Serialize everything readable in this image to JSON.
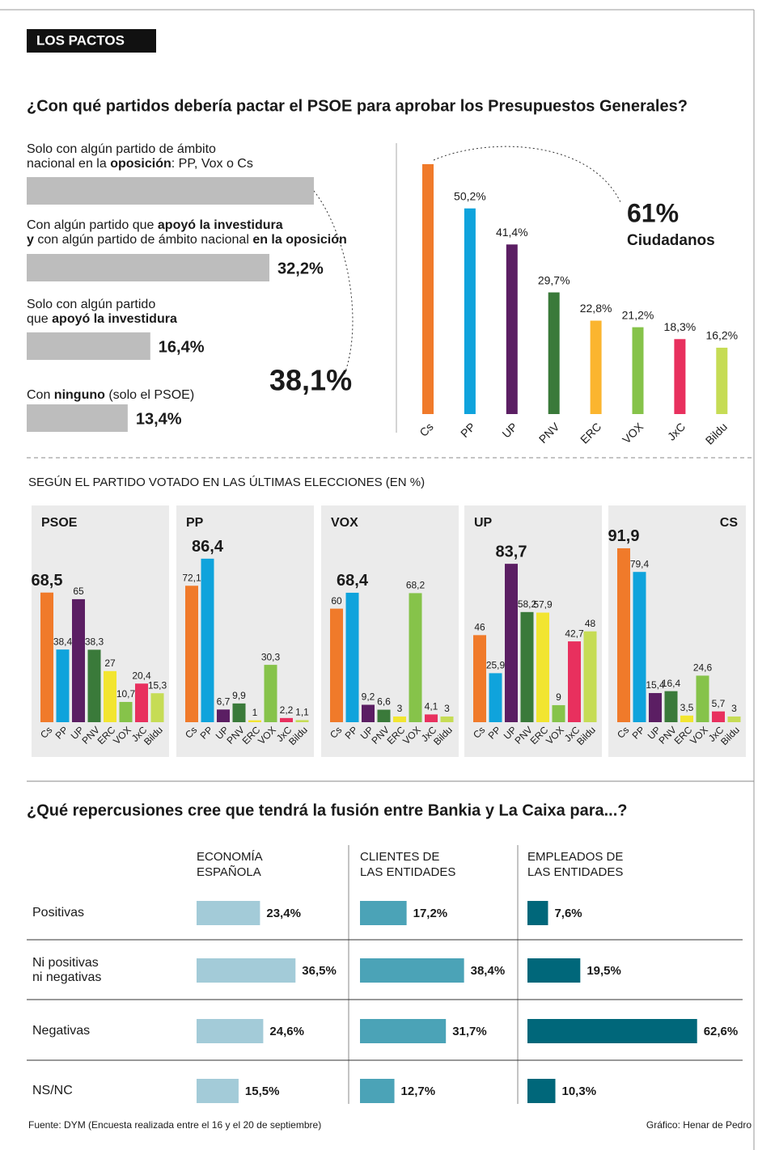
{
  "header": {
    "tag": "LOS PACTOS"
  },
  "chart_data": [
    {
      "type": "hbar",
      "title": "¿Con qué partidos debería pactar el PSOE para aprobar los Presupuestos Generales?",
      "categories": [
        [
          [
            {
              "text": "Solo con algún partido de ámbito"
            }
          ],
          [
            {
              "text": "nacional en la "
            },
            {
              "text": "oposición",
              "bold": true
            },
            {
              "text": ": PP, Vox o Cs"
            }
          ]
        ],
        [
          [
            {
              "text": "Con algún partido que "
            },
            {
              "text": "apoyó la investidura",
              "bold": true
            }
          ],
          [
            {
              "text": "y",
              "bold": true
            },
            {
              "text": " con algún partido de ámbito nacional "
            },
            {
              "text": "en la oposición",
              "bold": true
            }
          ]
        ],
        [
          [
            {
              "text": "Solo con algún partido"
            }
          ],
          [
            {
              "text": "que "
            },
            {
              "text": "apoyó la investidura",
              "bold": true
            }
          ]
        ],
        [
          [
            {
              "text": "Con "
            },
            {
              "text": "ninguno",
              "bold": true
            },
            {
              "text": " (solo el PSOE)"
            }
          ]
        ]
      ],
      "values": [
        38.1,
        32.2,
        16.4,
        13.4
      ],
      "value_labels": [
        "38,1%",
        "32,2%",
        "16,4%",
        "13,4%"
      ],
      "color": "#bdbdbd"
    },
    {
      "type": "bar",
      "categories": [
        "Cs",
        "PP",
        "UP",
        "PNV",
        "ERC",
        "VOX",
        "JxC",
        "Bildu"
      ],
      "values": [
        61,
        50.2,
        41.4,
        29.7,
        22.8,
        21.2,
        18.3,
        16.2
      ],
      "value_labels": [
        "61%",
        "50,2%",
        "41,4%",
        "29,7%",
        "22,8%",
        "21,2%",
        "18,3%",
        "16,2%"
      ],
      "annotation": "Ciudadanos",
      "colors": [
        "#f07a2a",
        "#0fa3dc",
        "#5b1e63",
        "#3a7a3a",
        "#fbb52f",
        "#86c34a",
        "#e8305e",
        "#c6dc55"
      ]
    },
    {
      "type": "bar_panels",
      "title": "SEGÚN EL PARTIDO VOTADO EN LAS ÚLTIMAS ELECCIONES (EN %)",
      "categories": [
        "Cs",
        "PP",
        "UP",
        "PNV",
        "ERC",
        "VOX",
        "JxC",
        "Bildu"
      ],
      "colors": [
        "#f07a2a",
        "#0fa3dc",
        "#5b1e63",
        "#3a7a3a",
        "#f2e530",
        "#86c34a",
        "#e8305e",
        "#c6dc55"
      ],
      "panels": [
        {
          "name": "PSOE",
          "values": [
            68.5,
            38.4,
            65,
            38.3,
            27,
            10.7,
            20.4,
            15.3
          ],
          "value_labels": [
            "68,5",
            "38,4",
            "65",
            "38,3",
            "27",
            "10,7",
            "20,4",
            "15,3"
          ]
        },
        {
          "name": "PP",
          "values": [
            72.1,
            86.4,
            6.7,
            9.9,
            1,
            30.3,
            2.2,
            1.1
          ],
          "value_labels": [
            "72,1",
            "86,4",
            "6,7",
            "9,9",
            "1",
            "30,3",
            "2,2",
            "1,1"
          ]
        },
        {
          "name": "VOX",
          "values": [
            60,
            68.4,
            9.2,
            6.6,
            3,
            68.2,
            4.1,
            3
          ],
          "value_labels": [
            "60",
            "68,4",
            "9,2",
            "6,6",
            "3",
            "68,2",
            "4,1",
            "3"
          ]
        },
        {
          "name": "UP",
          "values": [
            46,
            25.9,
            83.7,
            58.2,
            57.9,
            9,
            42.7,
            48
          ],
          "value_labels": [
            "46",
            "25,9",
            "83,7",
            "58,2",
            "57,9",
            "9",
            "42,7",
            "48"
          ]
        },
        {
          "name": "CS",
          "values": [
            91.9,
            79.4,
            15.4,
            16.4,
            3.5,
            24.6,
            5.7,
            3
          ],
          "value_labels": [
            "91,9",
            "79,4",
            "15,4",
            "16,4",
            "3,5",
            "24,6",
            "5,7",
            "3"
          ]
        }
      ]
    },
    {
      "type": "hbar_table",
      "title": "¿Qué repercusiones cree que tendrá la fusión entre Bankia y La Caixa para...?",
      "categories": [
        [
          "Positivas"
        ],
        [
          "Ni positivas",
          "ni negativas"
        ],
        [
          "Negativas"
        ],
        [
          "NS/NC"
        ]
      ],
      "series": [
        {
          "name": [
            "ECONOMÍA",
            "ESPAÑOLA"
          ],
          "color": "#a3cbd8",
          "values": [
            23.4,
            36.5,
            24.6,
            15.5
          ],
          "value_labels": [
            "23,4%",
            "36,5%",
            "24,6%",
            "15,5%"
          ]
        },
        {
          "name": [
            "CLIENTES DE",
            "LAS ENTIDADES"
          ],
          "color": "#4ba3b7",
          "values": [
            17.2,
            38.4,
            31.7,
            12.7
          ],
          "value_labels": [
            "17,2%",
            "38,4%",
            "31,7%",
            "12,7%"
          ]
        },
        {
          "name": [
            "EMPLEADOS DE",
            "LAS ENTIDADES"
          ],
          "color": "#00677a",
          "values": [
            7.6,
            19.5,
            62.6,
            10.3
          ],
          "value_labels": [
            "7,6%",
            "19,5%",
            "62,6%",
            "10,3%"
          ]
        }
      ]
    }
  ],
  "footer": {
    "source": "Fuente: DYM (Encuesta realizada entre el 16 y el 20 de septiembre)",
    "credit": "Gráfico: Henar de Pedro"
  }
}
